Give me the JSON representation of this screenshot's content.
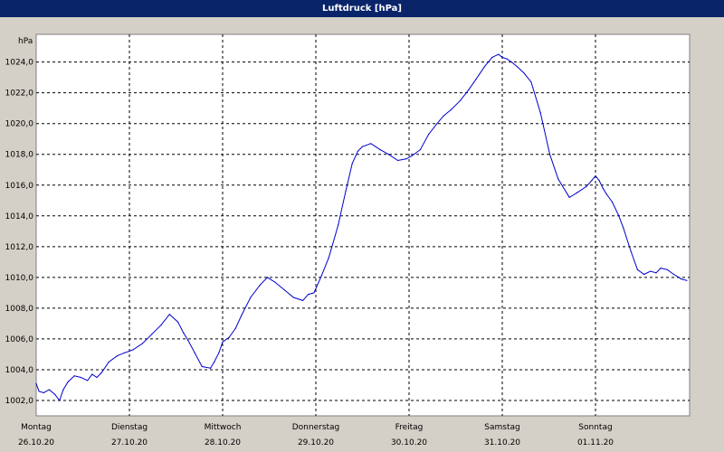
{
  "window": {
    "title": "Luftdruck [hPa]"
  },
  "chart_data": {
    "type": "line",
    "title": "Luftdruck [hPa]",
    "ylabel": "hPa",
    "xlabel": "",
    "ylim": [
      1001.0,
      1025.8
    ],
    "xlim": [
      0,
      7
    ],
    "grid": true,
    "legend": "none",
    "line_color": "#0000cc",
    "y_ticks": [
      "1002,0",
      "1004,0",
      "1006,0",
      "1008,0",
      "1010,0",
      "1012,0",
      "1014,0",
      "1016,0",
      "1018,0",
      "1020,0",
      "1022,0",
      "1024,0"
    ],
    "y_tick_values": [
      1002,
      1004,
      1006,
      1008,
      1010,
      1012,
      1014,
      1016,
      1018,
      1020,
      1022,
      1024
    ],
    "x_ticks": [
      {
        "day": "Montag",
        "date": "26.10.20"
      },
      {
        "day": "Dienstag",
        "date": "27.10.20"
      },
      {
        "day": "Mittwoch",
        "date": "28.10.20"
      },
      {
        "day": "Donnerstag",
        "date": "29.10.20"
      },
      {
        "day": "Freitag",
        "date": "30.10.20"
      },
      {
        "day": "Samstag",
        "date": "31.10.20"
      },
      {
        "day": "Sonntag",
        "date": "01.11.20"
      }
    ],
    "series": [
      {
        "x": [
          0.0,
          0.03,
          0.08,
          0.14,
          0.2,
          0.25,
          0.29,
          0.34,
          0.41,
          0.48,
          0.55,
          0.6,
          0.65,
          0.7,
          0.78,
          0.87,
          0.95,
          1.0,
          1.04,
          1.14,
          1.24,
          1.34,
          1.43,
          1.52,
          1.58,
          1.63,
          1.7,
          1.78,
          1.87,
          1.91,
          1.96,
          2.0,
          2.07,
          2.14,
          2.2,
          2.3,
          2.4,
          2.48,
          2.56,
          2.66,
          2.76,
          2.86,
          2.92,
          2.98,
          3.06,
          3.14,
          3.24,
          3.32,
          3.39,
          3.45,
          3.5,
          3.59,
          3.69,
          3.78,
          3.88,
          3.97,
          4.03,
          4.12,
          4.21,
          4.3,
          4.37,
          4.45,
          4.55,
          4.64,
          4.72,
          4.81,
          4.89,
          4.96,
          5.0,
          5.05,
          5.1,
          5.16,
          5.23,
          5.31,
          5.41,
          5.51,
          5.6,
          5.72,
          5.8,
          5.9,
          5.96,
          6.0,
          6.04,
          6.08,
          6.12,
          6.18,
          6.25,
          6.3,
          6.38,
          6.45,
          6.52,
          6.59,
          6.65,
          6.7,
          6.77,
          6.84,
          6.92,
          6.98
        ],
        "y": [
          1003.1,
          1002.6,
          1002.5,
          1002.7,
          1002.4,
          1002.0,
          1002.7,
          1003.2,
          1003.6,
          1003.5,
          1003.3,
          1003.7,
          1003.5,
          1003.8,
          1004.5,
          1004.9,
          1005.1,
          1005.2,
          1005.3,
          1005.7,
          1006.3,
          1006.9,
          1007.6,
          1007.1,
          1006.4,
          1005.9,
          1005.1,
          1004.2,
          1004.1,
          1004.5,
          1005.1,
          1005.8,
          1006.1,
          1006.7,
          1007.5,
          1008.7,
          1009.5,
          1010.0,
          1009.7,
          1009.2,
          1008.7,
          1008.5,
          1008.9,
          1009.0,
          1010.1,
          1011.3,
          1013.4,
          1015.6,
          1017.4,
          1018.2,
          1018.5,
          1018.7,
          1018.3,
          1018.0,
          1017.6,
          1017.7,
          1017.9,
          1018.3,
          1019.3,
          1020.0,
          1020.5,
          1020.9,
          1021.5,
          1022.2,
          1022.9,
          1023.7,
          1024.3,
          1024.5,
          1024.3,
          1024.2,
          1024.0,
          1023.7,
          1023.3,
          1022.7,
          1020.7,
          1018.0,
          1016.4,
          1015.2,
          1015.5,
          1015.9,
          1016.3,
          1016.6,
          1016.3,
          1015.8,
          1015.4,
          1014.9,
          1014.0,
          1013.2,
          1011.7,
          1010.5,
          1010.2,
          1010.4,
          1010.3,
          1010.6,
          1010.5,
          1010.2,
          1009.9,
          1009.8
        ]
      }
    ]
  }
}
